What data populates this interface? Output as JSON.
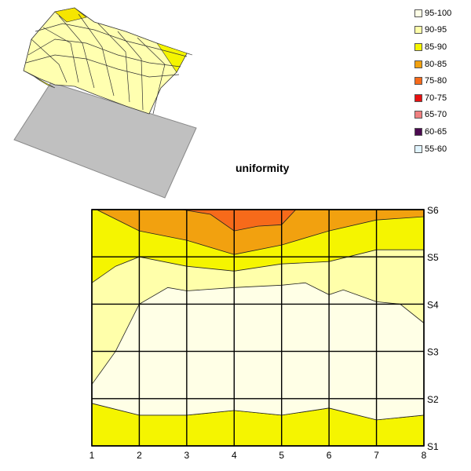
{
  "chart_data": {
    "type": "heatmap",
    "title": "uniformity",
    "x": [
      1,
      2,
      3,
      4,
      5,
      6,
      7,
      8
    ],
    "y_categories": [
      "S1",
      "S2",
      "S3",
      "S4",
      "S5",
      "S6"
    ],
    "legend": [
      {
        "label": "95-100",
        "color": "#FFFFE6"
      },
      {
        "label": "90-95",
        "color": "#FFFFAA"
      },
      {
        "label": "85-90",
        "color": "#F5F500"
      },
      {
        "label": "80-85",
        "color": "#F2A10F"
      },
      {
        "label": "75-80",
        "color": "#F76A1A"
      },
      {
        "label": "70-75",
        "color": "#E81010"
      },
      {
        "label": "65-70",
        "color": "#F08080"
      },
      {
        "label": "60-65",
        "color": "#4B0A50"
      },
      {
        "label": "55-60",
        "color": "#E0F4FF"
      }
    ],
    "bands": [
      {
        "color": "#F2A10F",
        "points": [
          [
            1,
            6
          ],
          [
            1.1,
            6
          ],
          [
            2,
            5.55
          ],
          [
            3,
            5.35
          ],
          [
            4,
            5.05
          ],
          [
            5,
            5.25
          ],
          [
            6,
            5.55
          ],
          [
            7,
            5.78
          ],
          [
            8,
            5.85
          ],
          [
            8,
            6
          ]
        ]
      },
      {
        "color": "#F76A1A",
        "points": [
          [
            2.9,
            6
          ],
          [
            3.5,
            5.9
          ],
          [
            4,
            5.55
          ],
          [
            4.5,
            5.65
          ],
          [
            5,
            5.68
          ],
          [
            5.3,
            6
          ]
        ]
      },
      {
        "color": "#FFFFAA",
        "points": [
          [
            1,
            4.45
          ],
          [
            1.5,
            4.8
          ],
          [
            2,
            5
          ],
          [
            3,
            4.8
          ],
          [
            4,
            4.7
          ],
          [
            5,
            4.85
          ],
          [
            6,
            4.9
          ],
          [
            7,
            5.15
          ],
          [
            8,
            5.15
          ],
          [
            8,
            1.65
          ],
          [
            7,
            1.55
          ],
          [
            6,
            1.8
          ],
          [
            5,
            1.65
          ],
          [
            4,
            1.75
          ],
          [
            3,
            1.65
          ],
          [
            2,
            1.65
          ],
          [
            1,
            1.9
          ]
        ]
      },
      {
        "color": "#FFFFE6",
        "points": [
          [
            1,
            2.3
          ],
          [
            1.5,
            3
          ],
          [
            2,
            4
          ],
          [
            2.6,
            4.35
          ],
          [
            3,
            4.28
          ],
          [
            4,
            4.35
          ],
          [
            5,
            4.4
          ],
          [
            5.5,
            4.45
          ],
          [
            6,
            4.2
          ],
          [
            6.3,
            4.3
          ],
          [
            7,
            4.05
          ],
          [
            7.5,
            4
          ],
          [
            8,
            3.6
          ],
          [
            8,
            1.65
          ],
          [
            7,
            1.55
          ],
          [
            6,
            1.8
          ],
          [
            5,
            1.65
          ],
          [
            4,
            1.75
          ],
          [
            3,
            1.65
          ],
          [
            2,
            1.65
          ],
          [
            1,
            1.9
          ]
        ]
      }
    ]
  }
}
